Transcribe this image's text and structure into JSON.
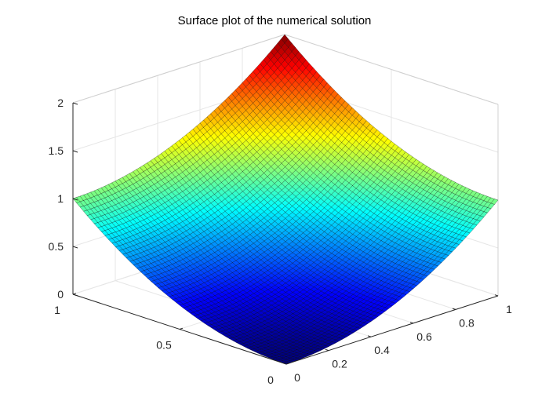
{
  "figure": {
    "title": "Surface plot of the numerical solution"
  },
  "chart_data": {
    "type": "surface",
    "title": "Surface plot of the numerical solution",
    "xlabel": "",
    "ylabel": "",
    "zlabel": "",
    "x_range": [
      0,
      1
    ],
    "y_range": [
      0,
      1
    ],
    "z_range": [
      0,
      2
    ],
    "x_ticks": [
      {
        "value": 0,
        "label": "0"
      },
      {
        "value": 0.2,
        "label": "0.2"
      },
      {
        "value": 0.4,
        "label": "0.4"
      },
      {
        "value": 0.6,
        "label": "0.6"
      },
      {
        "value": 0.8,
        "label": "0.8"
      },
      {
        "value": 1,
        "label": "1"
      }
    ],
    "y_ticks": [
      {
        "value": 0,
        "label": "0"
      },
      {
        "value": 0.5,
        "label": "0.5"
      },
      {
        "value": 1,
        "label": "1"
      }
    ],
    "z_ticks": [
      {
        "value": 0,
        "label": "0"
      },
      {
        "value": 0.5,
        "label": "0.5"
      },
      {
        "value": 1,
        "label": "1"
      },
      {
        "value": 1.5,
        "label": "1.5"
      },
      {
        "value": 2,
        "label": "2"
      }
    ],
    "corner_values": [
      {
        "x": 0,
        "y": 0,
        "z": 0
      },
      {
        "x": 1,
        "y": 0,
        "z": 1
      },
      {
        "x": 0,
        "y": 1,
        "z": 1
      },
      {
        "x": 1,
        "y": 1,
        "z": 2
      }
    ],
    "function": "u(x,y) = x^2 + y^2",
    "colormap": "jet",
    "grid": true,
    "edge_color": "#000000"
  }
}
